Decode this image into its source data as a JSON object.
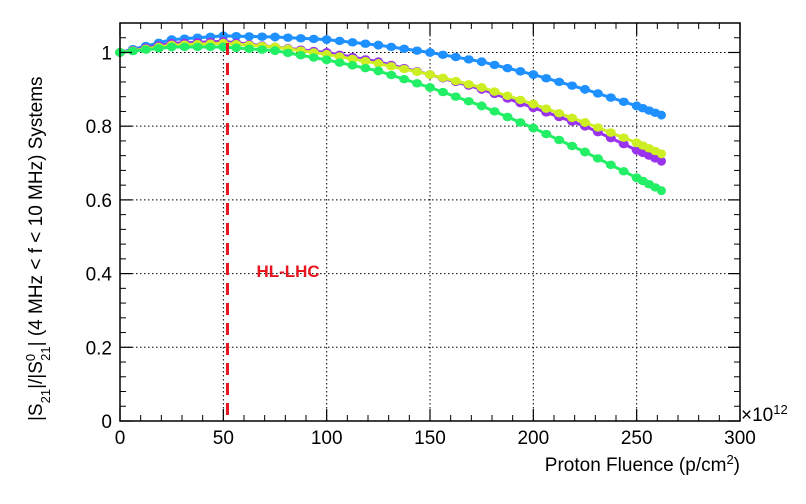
{
  "chart_data": {
    "type": "scatter",
    "title": "",
    "xlabel": {
      "main": "Proton Fluence (p/cm",
      "sup": "2",
      "tail": ")"
    },
    "x_multiplier": {
      "base": "×10",
      "exp": "12"
    },
    "ylabel": {
      "p1": "|S",
      "sub1": "21",
      "p2": "|/|S",
      "sup2": "0",
      "sub2": "21",
      "p3": "| (4 MHz < f < 10 MHz) Systems"
    },
    "xlim": [
      0,
      300
    ],
    "ylim": [
      0,
      1.08
    ],
    "x_ticks": [
      "0",
      "50",
      "100",
      "150",
      "200",
      "250",
      "300"
    ],
    "y_ticks": [
      "0",
      "0.2",
      "0.4",
      "0.6",
      "0.8",
      "1"
    ],
    "grid": true,
    "series": [
      {
        "name": "blue",
        "color": "#1e90ff",
        "x": [
          0,
          25,
          50,
          75,
          100,
          125,
          150,
          175,
          200,
          225,
          250,
          262
        ],
        "y": [
          1.0,
          1.035,
          1.045,
          1.042,
          1.035,
          1.02,
          1.0,
          0.975,
          0.94,
          0.9,
          0.855,
          0.83
        ]
      },
      {
        "name": "purple",
        "color": "#9933ee",
        "x": [
          0,
          25,
          50,
          75,
          100,
          125,
          150,
          175,
          200,
          225,
          250,
          262
        ],
        "y": [
          1.0,
          1.025,
          1.03,
          1.015,
          1.0,
          0.975,
          0.94,
          0.9,
          0.85,
          0.8,
          0.735,
          0.705
        ]
      },
      {
        "name": "yellow-green",
        "color": "#ccee22",
        "x": [
          0,
          25,
          50,
          75,
          100,
          125,
          150,
          175,
          200,
          225,
          250,
          262
        ],
        "y": [
          1.0,
          1.02,
          1.025,
          1.015,
          0.995,
          0.97,
          0.94,
          0.905,
          0.86,
          0.81,
          0.755,
          0.725
        ]
      },
      {
        "name": "green",
        "color": "#22ee66",
        "x": [
          0,
          25,
          50,
          75,
          100,
          125,
          150,
          175,
          200,
          225,
          250,
          262
        ],
        "y": [
          1.0,
          1.015,
          1.015,
          1.005,
          0.98,
          0.95,
          0.905,
          0.855,
          0.795,
          0.73,
          0.66,
          0.625
        ]
      }
    ],
    "vline": {
      "x": 52,
      "label": "HL-LHC",
      "color": "#e8141e"
    }
  }
}
